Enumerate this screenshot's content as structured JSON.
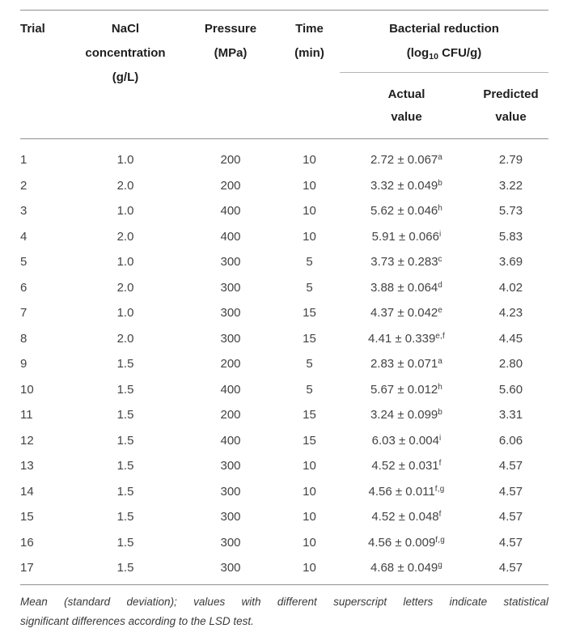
{
  "table": {
    "header": {
      "trial": "Trial",
      "nacl_line1": "NaCl",
      "nacl_line2": "concentration",
      "nacl_line3": "(g/L)",
      "pressure_line1": "Pressure",
      "pressure_line2": "(MPa)",
      "time_line1": "Time",
      "time_line2": "(min)",
      "bacterial_line1": "Bacterial reduction",
      "bacterial_unit_pre": "(log",
      "bacterial_unit_sub": "10",
      "bacterial_unit_post": " CFU/g)",
      "actual_line1": "Actual",
      "actual_line2": "value",
      "predicted_line1": "Predicted",
      "predicted_line2": "value"
    },
    "rows": [
      {
        "trial": "1",
        "nacl": "1.0",
        "pressure": "200",
        "time": "10",
        "actual": "2.72 ± 0.067",
        "sup": "a",
        "predicted": "2.79"
      },
      {
        "trial": "2",
        "nacl": "2.0",
        "pressure": "200",
        "time": "10",
        "actual": "3.32 ± 0.049",
        "sup": "b",
        "predicted": "3.22"
      },
      {
        "trial": "3",
        "nacl": "1.0",
        "pressure": "400",
        "time": "10",
        "actual": "5.62 ± 0.046",
        "sup": "h",
        "predicted": "5.73"
      },
      {
        "trial": "4",
        "nacl": "2.0",
        "pressure": "400",
        "time": "10",
        "actual": "5.91 ± 0.066",
        "sup": "i",
        "predicted": "5.83"
      },
      {
        "trial": "5",
        "nacl": "1.0",
        "pressure": "300",
        "time": "5",
        "actual": "3.73 ± 0.283",
        "sup": "c",
        "predicted": "3.69"
      },
      {
        "trial": "6",
        "nacl": "2.0",
        "pressure": "300",
        "time": "5",
        "actual": "3.88 ± 0.064",
        "sup": "d",
        "predicted": "4.02"
      },
      {
        "trial": "7",
        "nacl": "1.0",
        "pressure": "300",
        "time": "15",
        "actual": "4.37 ± 0.042",
        "sup": "e",
        "predicted": "4.23"
      },
      {
        "trial": "8",
        "nacl": "2.0",
        "pressure": "300",
        "time": "15",
        "actual": "4.41 ± 0.339",
        "sup": "e,f",
        "predicted": "4.45"
      },
      {
        "trial": "9",
        "nacl": "1.5",
        "pressure": "200",
        "time": "5",
        "actual": "2.83 ± 0.071",
        "sup": "a",
        "predicted": "2.80"
      },
      {
        "trial": "10",
        "nacl": "1.5",
        "pressure": "400",
        "time": "5",
        "actual": "5.67 ± 0.012",
        "sup": "h",
        "predicted": "5.60"
      },
      {
        "trial": "11",
        "nacl": "1.5",
        "pressure": "200",
        "time": "15",
        "actual": "3.24 ± 0.099",
        "sup": "b",
        "predicted": "3.31"
      },
      {
        "trial": "12",
        "nacl": "1.5",
        "pressure": "400",
        "time": "15",
        "actual": "6.03 ± 0.004",
        "sup": "i",
        "predicted": "6.06"
      },
      {
        "trial": "13",
        "nacl": "1.5",
        "pressure": "300",
        "time": "10",
        "actual": "4.52 ± 0.031",
        "sup": "f",
        "predicted": "4.57"
      },
      {
        "trial": "14",
        "nacl": "1.5",
        "pressure": "300",
        "time": "10",
        "actual": "4.56 ± 0.011",
        "sup": "f,g",
        "predicted": "4.57"
      },
      {
        "trial": "15",
        "nacl": "1.5",
        "pressure": "300",
        "time": "10",
        "actual": "4.52 ± 0.048",
        "sup": "f",
        "predicted": "4.57"
      },
      {
        "trial": "16",
        "nacl": "1.5",
        "pressure": "300",
        "time": "10",
        "actual": "4.56 ± 0.009",
        "sup": "f,g",
        "predicted": "4.57"
      },
      {
        "trial": "17",
        "nacl": "1.5",
        "pressure": "300",
        "time": "10",
        "actual": "4.68 ± 0.049",
        "sup": "g",
        "predicted": "4.57"
      }
    ]
  },
  "footnote": {
    "line1": "Mean (standard deviation); values with different superscript letters indicate statistical",
    "line2": "significant differences according to the LSD test."
  },
  "colors": {
    "rule_dark": "#8f8f8f",
    "rule_light": "#b5b5b5",
    "header_text": "#1f1f1f",
    "body_text": "#434343",
    "footnote_text": "#3a3a3a",
    "background": "#ffffff"
  }
}
